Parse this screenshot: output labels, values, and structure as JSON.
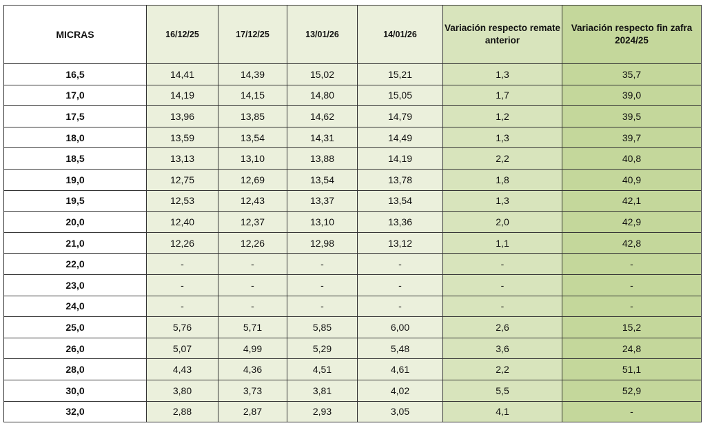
{
  "headers": [
    "MICRAS",
    "16/12/25",
    "17/12/25",
    "13/01/26",
    "14/01/26",
    "Variación respecto remate anterior",
    "Variación respecto fin zafra 2024/25"
  ],
  "rows": [
    [
      "16,5",
      "14,41",
      "14,39",
      "15,02",
      "15,21",
      "1,3",
      "35,7"
    ],
    [
      "17,0",
      "14,19",
      "14,15",
      "14,80",
      "15,05",
      "1,7",
      "39,0"
    ],
    [
      "17,5",
      "13,96",
      "13,85",
      "14,62",
      "14,79",
      "1,2",
      "39,5"
    ],
    [
      "18,0",
      "13,59",
      "13,54",
      "14,31",
      "14,49",
      "1,3",
      "39,7"
    ],
    [
      "18,5",
      "13,13",
      "13,10",
      "13,88",
      "14,19",
      "2,2",
      "40,8"
    ],
    [
      "19,0",
      "12,75",
      "12,69",
      "13,54",
      "13,78",
      "1,8",
      "40,9"
    ],
    [
      "19,5",
      "12,53",
      "12,43",
      "13,37",
      "13,54",
      "1,3",
      "42,1"
    ],
    [
      "20,0",
      "12,40",
      "12,37",
      "13,10",
      "13,36",
      "2,0",
      "42,9"
    ],
    [
      "21,0",
      "12,26",
      "12,26",
      "12,98",
      "13,12",
      "1,1",
      "42,8"
    ],
    [
      "22,0",
      "-",
      "-",
      "-",
      "-",
      "-",
      "-"
    ],
    [
      "23,0",
      "-",
      "-",
      "-",
      "-",
      "-",
      "-"
    ],
    [
      "24,0",
      "-",
      "-",
      "-",
      "-",
      "-",
      "-"
    ],
    [
      "25,0",
      "5,76",
      "5,71",
      "5,85",
      "6,00",
      "2,6",
      "15,2"
    ],
    [
      "26,0",
      "5,07",
      "4,99",
      "5,29",
      "5,48",
      "3,6",
      "24,8"
    ],
    [
      "28,0",
      "4,43",
      "4,36",
      "4,51",
      "4,61",
      "2,2",
      "51,1"
    ],
    [
      "30,0",
      "3,80",
      "3,73",
      "3,81",
      "4,02",
      "5,5",
      "52,9"
    ],
    [
      "32,0",
      "2,88",
      "2,87",
      "2,93",
      "3,05",
      "4,1",
      "-"
    ]
  ],
  "colors": {
    "date_columns": "#ebf0dc",
    "variation_previous": "#d8e4bc",
    "variation_season": "#c4d79b"
  }
}
